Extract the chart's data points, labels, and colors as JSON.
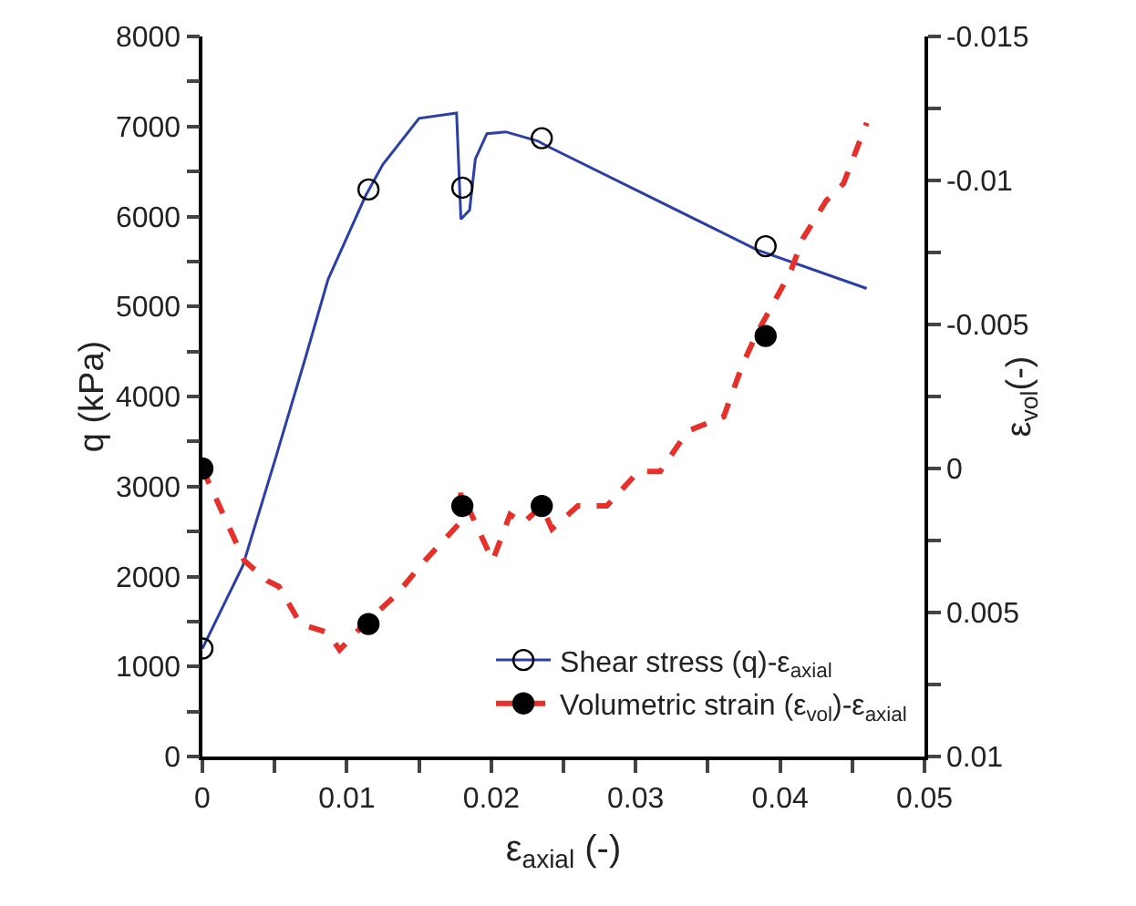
{
  "chart_data": {
    "type": "line",
    "xlabel": "ε$_{axial}$ (-)",
    "ylabel": "q (kPa)",
    "y2label": "ε$_{vol}$(-)",
    "xlim": [
      0,
      0.05
    ],
    "xticks": [
      0,
      {
        "value": 0.005,
        "label": null
      },
      0.01,
      {
        "value": 0.015,
        "label": null
      },
      0.02,
      {
        "value": 0.025,
        "label": null
      },
      0.03,
      {
        "value": 0.035,
        "label": null
      },
      0.04,
      {
        "value": 0.045,
        "label": null
      },
      0.05
    ],
    "ylim": [
      0,
      8000
    ],
    "yticks": [
      0,
      {
        "value": 500,
        "label": null
      },
      1000,
      {
        "value": 1500,
        "label": null
      },
      2000,
      {
        "value": 2500,
        "label": null
      },
      3000,
      {
        "value": 3500,
        "label": null
      },
      4000,
      {
        "value": 4500,
        "label": null
      },
      5000,
      {
        "value": 5500,
        "label": null
      },
      6000,
      {
        "value": 6500,
        "label": null
      },
      7000,
      {
        "value": 7500,
        "label": null
      },
      8000
    ],
    "y2lim": [
      0.01,
      -0.015
    ],
    "y2ticks": [
      -0.015,
      {
        "value": -0.0125,
        "label": null
      },
      -0.01,
      {
        "value": -0.0075,
        "label": null
      },
      -0.005,
      {
        "value": -0.0025,
        "label": null
      },
      0,
      {
        "value": 0.0025,
        "label": null
      },
      0.005,
      {
        "value": 0.0075,
        "label": null
      },
      0.01
    ],
    "grid": false,
    "legend": "bottom right",
    "series": [
      {
        "name": "Shear stress (q)-ε$_{axial}$",
        "color": "#2b3fa8",
        "line_style": "solid",
        "x": [
          0,
          0.0028,
          0.005,
          0.0071,
          0.0087,
          0.0113,
          0.0125,
          0.015,
          0.0176,
          0.0179,
          0.0185,
          0.0189,
          0.0197,
          0.021,
          0.0232,
          0.0239,
          0.0384,
          0.046
        ],
        "values": [
          1200,
          2120,
          3280,
          4410,
          5300,
          6230,
          6580,
          7090,
          7150,
          5970,
          6070,
          6640,
          6920,
          6940,
          6840,
          6780,
          5630,
          5200
        ]
      },
      {
        "type": "scatter",
        "marker": "circle-open",
        "color": "#000000",
        "x": [
          0,
          0.0115,
          0.018,
          0.0235,
          0.039
        ],
        "values": [
          1200,
          6300,
          6320,
          6870,
          5670
        ]
      },
      {
        "name": "Volumetric strain (ε$_{vol}$)-ε$_{axial}$",
        "axis": "y2",
        "color": "#e8302a",
        "line_style": "dashed",
        "x": [
          0,
          0.0029,
          0.0045,
          0.0053,
          0.0068,
          0.0087,
          0.0095,
          0.0112,
          0.0134,
          0.0154,
          0.0178,
          0.0179,
          0.0201,
          0.0213,
          0.0222,
          0.0235,
          0.0242,
          0.026,
          0.028,
          0.0302,
          0.0317,
          0.0336,
          0.0361,
          0.0374,
          0.0384,
          0.0407,
          0.0416,
          0.0432,
          0.0444,
          0.046
        ],
        "values": [
          0,
          0.0032,
          0.0039,
          0.0041,
          0.0054,
          0.0057,
          0.0063,
          0.0054,
          0.0044,
          0.0032,
          0.0019,
          0.0008,
          0.0032,
          0.0016,
          0.0019,
          0.0013,
          0.0021,
          0.0013,
          0.0013,
          0.0001,
          0.0001,
          -0.0013,
          -0.0018,
          -0.0036,
          -0.0047,
          -0.0068,
          -0.008,
          -0.0093,
          -0.0099,
          -0.012
        ]
      },
      {
        "type": "scatter",
        "axis": "y2",
        "marker": "circle",
        "color": "#000000",
        "x": [
          0,
          0.0115,
          0.018,
          0.0235,
          0.039
        ],
        "values": [
          0,
          0.0054,
          0.0013,
          0.0013,
          -0.0046
        ]
      }
    ]
  }
}
